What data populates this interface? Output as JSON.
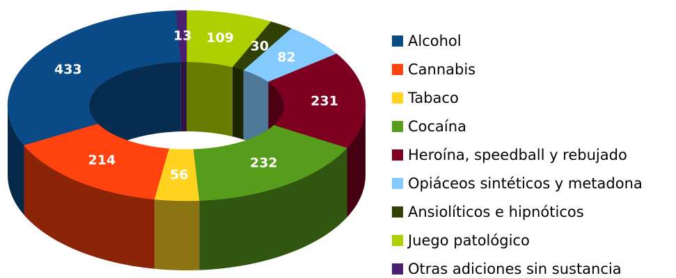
{
  "chart_data": {
    "type": "donut",
    "categories": [
      "Alcohol",
      "Cannabis",
      "Tabaco",
      "Cocaína",
      "Heroína, speedball y rebujado",
      "Opiáceos sintéticos y metadona",
      "Ansiolíticos e hipnóticos",
      "Juego patológico",
      "Otras adiciones sin sustancia"
    ],
    "values": [
      433,
      214,
      56,
      232,
      231,
      82,
      30,
      109,
      13
    ],
    "colors": [
      "#0a4a86",
      "#ff420e",
      "#ffd320",
      "#579d1c",
      "#7e0021",
      "#83caff",
      "#314004",
      "#aecf00",
      "#4b1f6f"
    ],
    "legend": "right"
  }
}
